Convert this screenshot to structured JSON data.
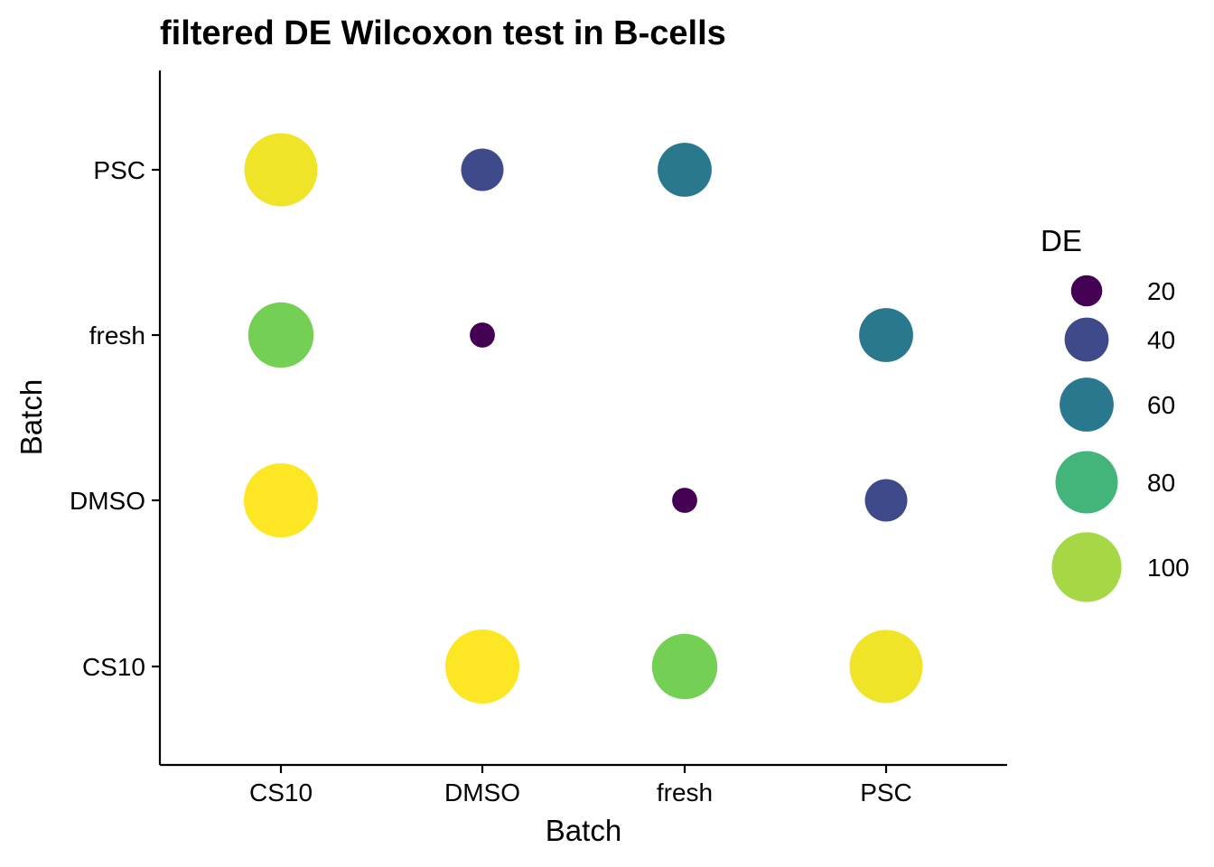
{
  "chart_data": {
    "type": "scatter",
    "title": "filtered DE Wilcoxon test in B-cells",
    "xlabel": "Batch",
    "ylabel": "Batch",
    "x_categories": [
      "CS10",
      "DMSO",
      "fresh",
      "PSC"
    ],
    "y_categories": [
      "CS10",
      "DMSO",
      "fresh",
      "PSC"
    ],
    "size_variable": "DE",
    "color_variable": "DE",
    "colormap": "viridis",
    "grid": false,
    "legend_position": "right",
    "legend": {
      "title": "DE",
      "entries": [
        {
          "label": "20",
          "value": 20,
          "color": "#440154"
        },
        {
          "label": "40",
          "value": 40,
          "color": "#3e4a89"
        },
        {
          "label": "60",
          "value": 60,
          "color": "#2a788e"
        },
        {
          "label": "80",
          "value": 80,
          "color": "#43b57a"
        },
        {
          "label": "100",
          "value": 100,
          "color": "#a5d844"
        }
      ]
    },
    "points": [
      {
        "x": "CS10",
        "y": "PSC",
        "value": 110,
        "color": "#efe428"
      },
      {
        "x": "DMSO",
        "y": "PSC",
        "value": 37,
        "color": "#3e4a89"
      },
      {
        "x": "fresh",
        "y": "PSC",
        "value": 60,
        "color": "#2a788e"
      },
      {
        "x": "CS10",
        "y": "fresh",
        "value": 88,
        "color": "#73d055"
      },
      {
        "x": "DMSO",
        "y": "fresh",
        "value": 13,
        "color": "#440154"
      },
      {
        "x": "PSC",
        "y": "fresh",
        "value": 60,
        "color": "#2a788e"
      },
      {
        "x": "CS10",
        "y": "DMSO",
        "value": 113,
        "color": "#fde725"
      },
      {
        "x": "fresh",
        "y": "DMSO",
        "value": 13,
        "color": "#440154"
      },
      {
        "x": "PSC",
        "y": "DMSO",
        "value": 37,
        "color": "#3e4a89"
      },
      {
        "x": "DMSO",
        "y": "CS10",
        "value": 113,
        "color": "#fde725"
      },
      {
        "x": "fresh",
        "y": "CS10",
        "value": 88,
        "color": "#73d055"
      },
      {
        "x": "PSC",
        "y": "CS10",
        "value": 110,
        "color": "#efe428"
      }
    ]
  }
}
